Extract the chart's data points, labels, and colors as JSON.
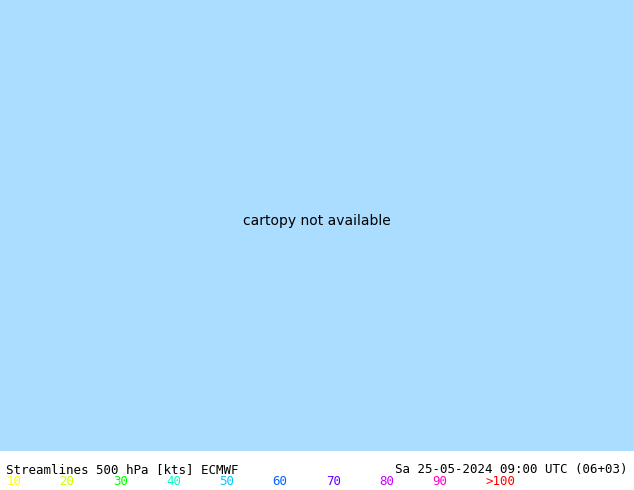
{
  "title_left": "Streamlines 500 hPa [kts] ECMWF",
  "title_right": "Sa 25-05-2024 09:00 UTC (06+03)",
  "legend_values": [
    "10",
    "20",
    "30",
    "40",
    "50",
    "60",
    "70",
    "80",
    "90",
    ">100"
  ],
  "legend_colors": [
    "#ffff00",
    "#c8ff00",
    "#00ff00",
    "#00ffc8",
    "#00c8ff",
    "#0064ff",
    "#6400ff",
    "#c800ff",
    "#ff00c8",
    "#ff0000"
  ],
  "bg_color": "#aaddff",
  "text_color": "#000000",
  "fig_width": 6.34,
  "fig_height": 4.9,
  "dpi": 100,
  "map_extent": [
    -140,
    -60,
    5,
    60
  ],
  "streamline_color_stops": [
    [
      10,
      "#ffff00"
    ],
    [
      20,
      "#c8ff00"
    ],
    [
      30,
      "#00ff00"
    ],
    [
      40,
      "#00ffc8"
    ],
    [
      50,
      "#00c8ff"
    ],
    [
      60,
      "#0064ff"
    ],
    [
      70,
      "#6400ff"
    ],
    [
      80,
      "#c800ff"
    ],
    [
      90,
      "#ff00c8"
    ],
    [
      100,
      "#ff0000"
    ]
  ],
  "font_size_title": 9,
  "font_size_legend": 9,
  "font_name": "monospace"
}
